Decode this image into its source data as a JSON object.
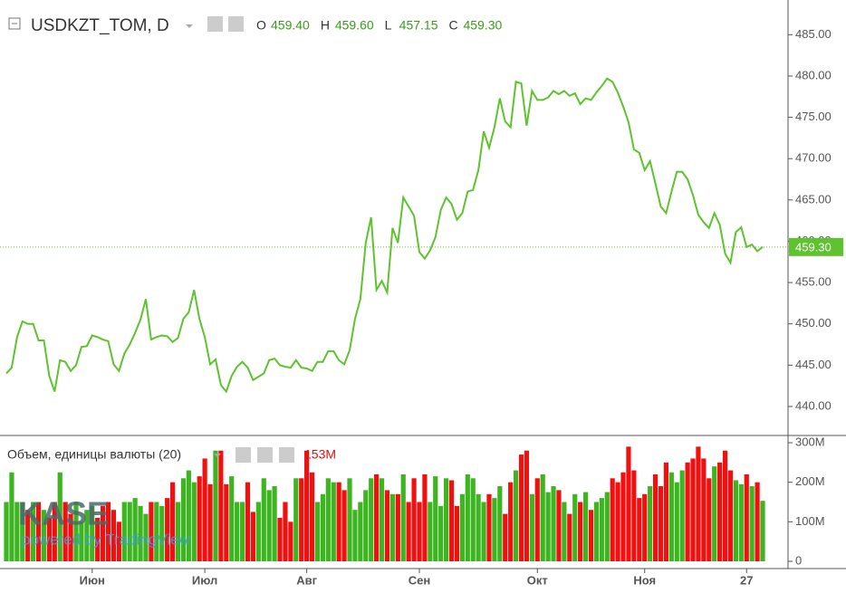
{
  "chart_data": {
    "type": "line",
    "title": "USDKZT_TOM, D",
    "ohlc": [
      {
        "key": "O",
        "value": 459.4,
        "label": "459.40"
      },
      {
        "key": "H",
        "value": 459.6,
        "label": "459.60"
      },
      {
        "key": "L",
        "value": 457.15,
        "label": "457.15"
      },
      {
        "key": "C",
        "value": 459.3,
        "label": "459.30"
      }
    ],
    "last_price": {
      "value": 459.3,
      "label": "459.30"
    },
    "color": "#5ec32e",
    "categories": [
      null,
      null,
      null,
      null,
      null,
      null,
      null,
      null,
      null,
      null,
      null,
      null,
      null,
      null,
      null,
      null,
      "Июн",
      null,
      null,
      null,
      null,
      null,
      null,
      null,
      null,
      null,
      null,
      null,
      null,
      null,
      null,
      null,
      null,
      null,
      null,
      null,
      null,
      "Июл",
      null,
      null,
      null,
      null,
      null,
      null,
      null,
      null,
      null,
      null,
      null,
      null,
      null,
      null,
      null,
      null,
      null,
      null,
      "Авг",
      null,
      null,
      null,
      null,
      null,
      null,
      null,
      null,
      null,
      null,
      null,
      null,
      null,
      null,
      null,
      null,
      null,
      null,
      null,
      null,
      "Сен",
      null,
      null,
      null,
      null,
      null,
      null,
      null,
      null,
      null,
      null,
      null,
      null,
      null,
      null,
      null,
      null,
      null,
      null,
      null,
      null,
      null,
      "Окт",
      null,
      null,
      null,
      null,
      null,
      null,
      null,
      null,
      null,
      null,
      null,
      null,
      null,
      null,
      null,
      null,
      null,
      null,
      null,
      "Ноя",
      null,
      null,
      null,
      null,
      null,
      null,
      null,
      null,
      null,
      null,
      null,
      null,
      null,
      null,
      null,
      null,
      null,
      null,
      "27",
      null,
      null,
      null
    ],
    "values": [
      444.0,
      444.7,
      448.4,
      450.3,
      450.0,
      450.0,
      448.0,
      448.0,
      443.7,
      441.8,
      445.6,
      445.4,
      444.3,
      445.0,
      447.2,
      447.3,
      448.6,
      448.4,
      448.1,
      447.9,
      445.1,
      444.3,
      446.4,
      447.5,
      448.9,
      450.5,
      453.0,
      448.1,
      448.4,
      448.6,
      448.5,
      447.8,
      448.3,
      450.6,
      451.4,
      454.1,
      450.6,
      448.4,
      445.1,
      445.7,
      442.6,
      441.8,
      443.7,
      444.8,
      445.4,
      444.7,
      443.2,
      443.6,
      444.0,
      445.6,
      445.8,
      445.0,
      444.8,
      444.7,
      445.6,
      444.7,
      444.6,
      444.3,
      445.4,
      445.4,
      446.7,
      446.7,
      445.6,
      445.1,
      446.8,
      450.6,
      453.0,
      459.8,
      462.9,
      454.1,
      455.2,
      453.8,
      461.6,
      459.8,
      465.3,
      464.2,
      463.1,
      458.7,
      457.9,
      458.9,
      460.5,
      463.8,
      465.3,
      464.5,
      462.6,
      463.4,
      466.0,
      466.2,
      468.6,
      473.3,
      471.3,
      473.8,
      477.3,
      474.5,
      473.8,
      479.3,
      479.1,
      474.0,
      478.2,
      477.1,
      477.1,
      477.4,
      478.2,
      477.8,
      478.2,
      477.6,
      477.9,
      476.6,
      477.3,
      477.1,
      478.0,
      478.8,
      479.7,
      479.3,
      478.0,
      476.3,
      474.4,
      471.1,
      470.7,
      468.6,
      469.7,
      467.0,
      464.2,
      463.4,
      466.0,
      468.4,
      468.4,
      467.5,
      465.6,
      463.2,
      462.3,
      461.6,
      463.4,
      462.0,
      458.5,
      457.4,
      461.1,
      461.7,
      459.3,
      459.6,
      458.8,
      459.3
    ],
    "ylim": [
      436.6,
      489.2
    ],
    "yticks": [
      {
        "value": 440,
        "label": "440.00"
      },
      {
        "value": 445,
        "label": "445.00"
      },
      {
        "value": 450,
        "label": "450.00"
      },
      {
        "value": 455,
        "label": "455.00"
      },
      {
        "value": 460,
        "label": "460.00"
      },
      {
        "value": 465,
        "label": "465.00"
      },
      {
        "value": 470,
        "label": "470.00"
      },
      {
        "value": 475,
        "label": "475.00"
      },
      {
        "value": 480,
        "label": "480.00"
      },
      {
        "value": 485,
        "label": "485.00"
      }
    ],
    "volume": {
      "name": "Объем, единицы валюты (20)",
      "current": "153M",
      "up_color": "#3cb521",
      "down_color": "#f01010",
      "values": [
        150,
        225,
        150,
        150,
        130,
        150,
        150,
        130,
        110,
        150,
        225,
        150,
        120,
        150,
        100,
        130,
        140,
        110,
        140,
        150,
        130,
        100,
        150,
        150,
        160,
        140,
        120,
        150,
        150,
        140,
        160,
        200,
        150,
        210,
        230,
        200,
        215,
        260,
        195,
        280,
        280,
        195,
        215,
        150,
        150,
        200,
        125,
        150,
        210,
        180,
        190,
        110,
        150,
        100,
        210,
        210,
        280,
        225,
        150,
        170,
        210,
        200,
        200,
        180,
        210,
        130,
        150,
        180,
        210,
        220,
        210,
        180,
        170,
        170,
        220,
        150,
        210,
        150,
        220,
        150,
        215,
        140,
        210,
        205,
        140,
        170,
        220,
        210,
        170,
        150,
        170,
        160,
        190,
        120,
        200,
        230,
        270,
        280,
        170,
        210,
        220,
        175,
        190,
        180,
        150,
        120,
        170,
        150,
        175,
        130,
        150,
        160,
        175,
        210,
        200,
        225,
        290,
        230,
        160,
        170,
        190,
        220,
        190,
        250,
        225,
        200,
        230,
        250,
        260,
        290,
        260,
        210,
        240,
        250,
        280,
        230,
        205,
        195,
        220,
        190,
        200,
        153
      ],
      "ylim": [
        -18.3,
        316
      ],
      "yticks": [
        0,
        {
          "value": 100,
          "label": "100M"
        },
        {
          "value": 200,
          "label": "200M"
        },
        {
          "value": 300,
          "label": "300M"
        }
      ]
    },
    "logo": "KASE",
    "powered_by": "powered by TradingView"
  }
}
